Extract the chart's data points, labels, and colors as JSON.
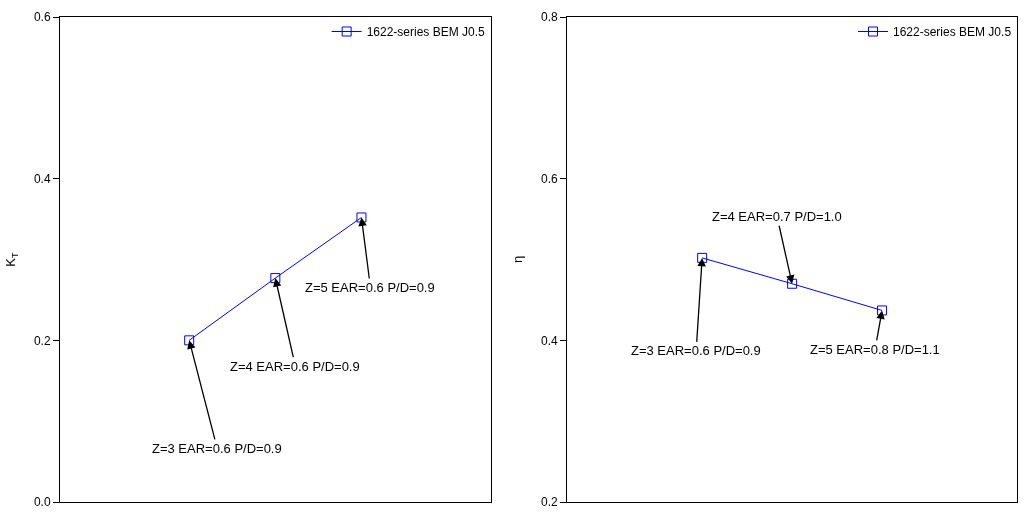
{
  "chart_data": [
    {
      "type": "line",
      "ylabel": "K$_{T}$",
      "categories": [
        null,
        null,
        null,
        null,
        null
      ],
      "ylim": [
        0,
        0.6
      ],
      "yticks": [
        {
          "value": 0,
          "label": "0.0"
        },
        0.2,
        0.4,
        0.6
      ],
      "tick_labels": "y",
      "legend": "top right",
      "marker": "square",
      "line_style": "solid",
      "series": [
        {
          "name": "1622-series BEM J0.5",
          "color": "#0000ff",
          "values": [
            null,
            0.2,
            0.277,
            0.352,
            null
          ]
        }
      ],
      "annotations": [
        "Z=3 EAR=0.6 P/D=0.9",
        "Z=4 EAR=0.6 P/D=0.9",
        "Z=5 EAR=0.6 P/D=0.9"
      ]
    },
    {
      "type": "line",
      "ylabel": "η",
      "categories": [
        null,
        null,
        null,
        null,
        null
      ],
      "ylim": [
        0.2,
        0.8
      ],
      "yticks": [
        0.2,
        0.4,
        0.6,
        0.8
      ],
      "tick_labels": "y",
      "legend": "top right",
      "marker": "square",
      "line_style": "solid",
      "series": [
        {
          "name": "1622-series BEM J0.5",
          "color": "#0000ff",
          "values": [
            null,
            0.502,
            0.47,
            0.437,
            null
          ]
        }
      ],
      "annotations": [
        "Z=3 EAR=0.6 P/D=0.9",
        "Z=4 EAR=0.7 P/D=1.0",
        "Z=5 EAR=0.8 P/D=1.1"
      ]
    }
  ]
}
